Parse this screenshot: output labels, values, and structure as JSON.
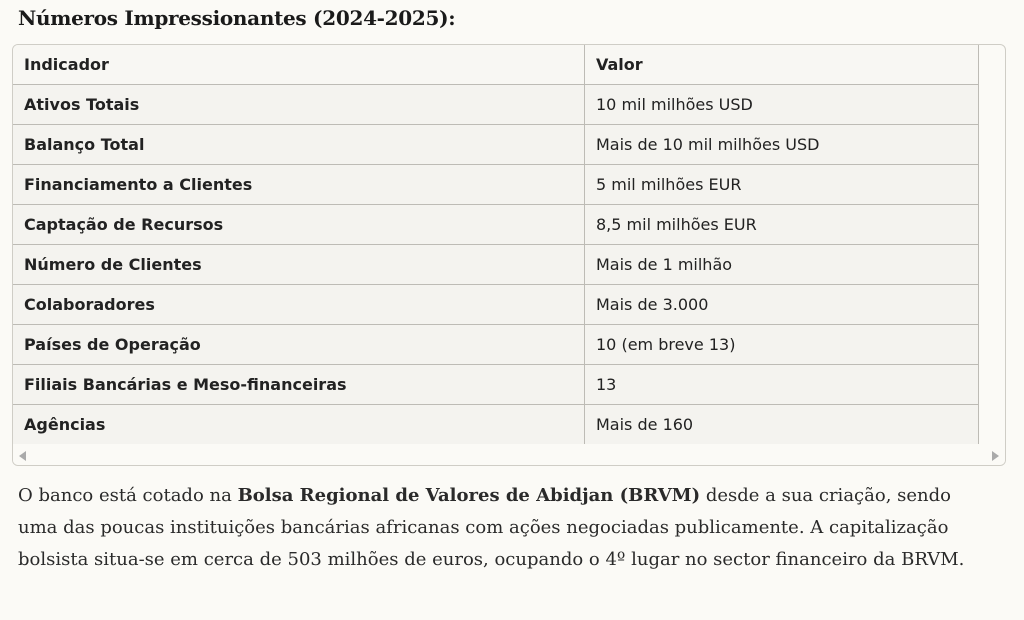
{
  "heading": "Números Impressionantes (2024-2025):",
  "table": {
    "header": [
      "Indicador",
      "Valor"
    ],
    "rows": [
      [
        "Ativos Totais",
        "10 mil milhões USD"
      ],
      [
        "Balanço Total",
        "Mais de 10 mil milhões USD"
      ],
      [
        "Financiamento a Clientes",
        "5 mil milhões EUR"
      ],
      [
        "Captação de Recursos",
        "8,5 mil milhões EUR"
      ],
      [
        "Número de Clientes",
        "Mais de 1 milhão"
      ],
      [
        "Colaboradores",
        "Mais de 3.000"
      ],
      [
        "Países de Operação",
        "10 (em breve 13)"
      ],
      [
        "Filiais Bancárias e Meso-financeiras",
        "13"
      ],
      [
        "Agências",
        "Mais de 160"
      ]
    ]
  },
  "paragraph": {
    "before": "O banco está cotado na ",
    "bold": "Bolsa Regional de Valores de Abidjan (BRVM)",
    "after": " desde a sua criação, sendo uma das poucas instituições bancárias africanas com ações negociadas publicamente. A capitalização bolsista situa-se em cerca de 503 milhões de euros, ocupando o 4º lugar no sector financeiro da BRVM."
  }
}
